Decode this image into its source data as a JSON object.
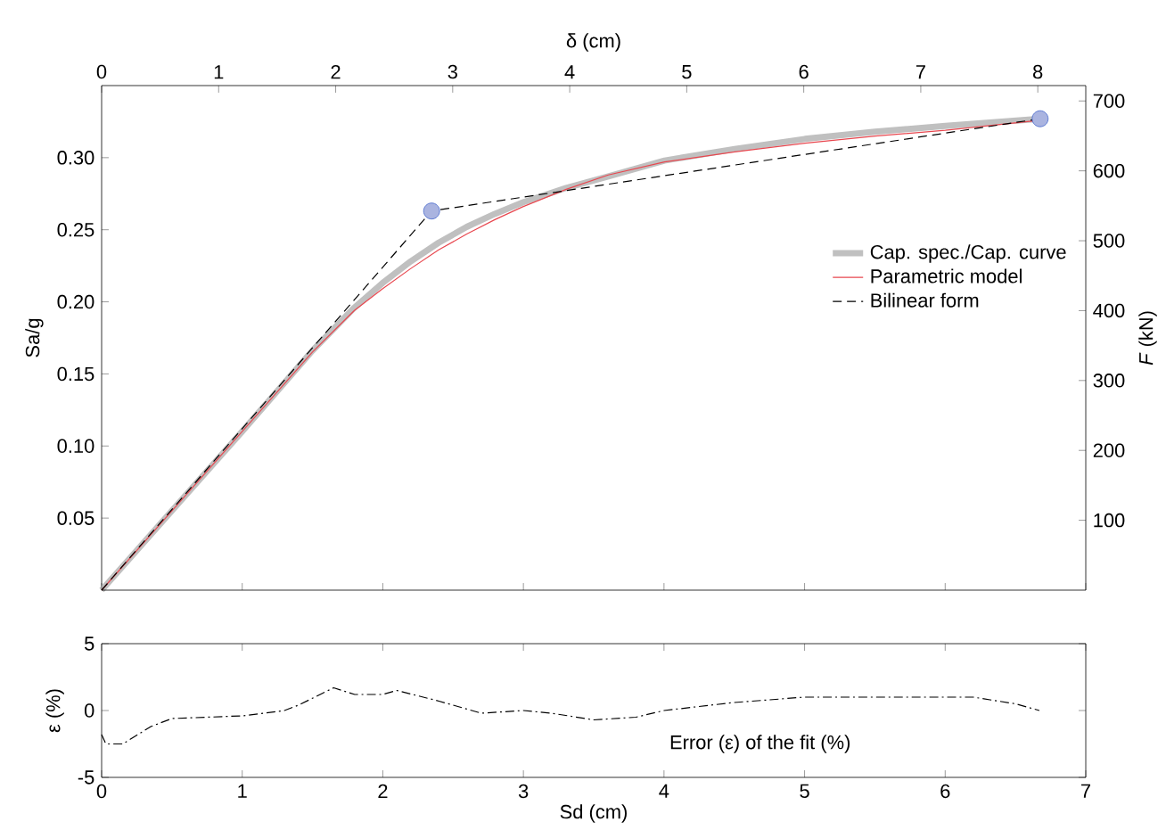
{
  "chart_data": [
    {
      "type": "line",
      "xlabel": "δ (cm)",
      "ylabel": "Sa/g",
      "y2label": "*F* (kN)",
      "xlim": [
        0,
        8.41
      ],
      "xticks": [
        0,
        1,
        2,
        3,
        4,
        5,
        6,
        7,
        8
      ],
      "ylim": [
        0,
        0.35
      ],
      "yticks": [
        0.05,
        {
          "value": 0.1,
          "label": "0.10"
        },
        0.15,
        {
          "value": 0.2,
          "label": "0.20"
        },
        0.25,
        {
          "value": 0.3,
          "label": "0.30"
        }
      ],
      "y2lim": [
        0,
        722
      ],
      "y2ticks": [
        100,
        200,
        300,
        400,
        500,
        600,
        700
      ],
      "legend": "right",
      "series": [
        {
          "name": "Cap. spec./Cap. curve",
          "color": "#c0c0c0",
          "line_style": "solid",
          "x": [
            0,
            0.6,
            1.2,
            1.8,
            2.16,
            2.4,
            2.64,
            2.88,
            3.12,
            3.36,
            3.6,
            3.97,
            4.33,
            4.81,
            5.41,
            6.01,
            6.61,
            7.21,
            8.02
          ],
          "values": [
            0,
            0.055,
            0.11,
            0.166,
            0.196,
            0.213,
            0.228,
            0.241,
            0.252,
            0.261,
            0.269,
            0.279,
            0.287,
            0.298,
            0.306,
            0.313,
            0.318,
            0.322,
            0.327
          ]
        },
        {
          "name": "Parametric model",
          "color": "#e8474f",
          "line_style": "solid",
          "x": [
            0,
            0.6,
            1.2,
            1.8,
            2.16,
            2.4,
            2.64,
            2.88,
            3.12,
            3.36,
            3.6,
            3.97,
            4.33,
            4.81,
            5.41,
            6.01,
            6.61,
            7.21,
            8.02
          ],
          "values": [
            0,
            0.055,
            0.11,
            0.165,
            0.194,
            0.209,
            0.223,
            0.236,
            0.247,
            0.257,
            0.266,
            0.278,
            0.288,
            0.297,
            0.304,
            0.31,
            0.315,
            0.319,
            0.326
          ]
        },
        {
          "name": "Bilinear form",
          "color": "#000000",
          "line_style": "dashed",
          "x": [
            0,
            2.82,
            8.02
          ],
          "values": [
            0,
            0.263,
            0.327
          ]
        },
        {
          "type": "scatter",
          "marker": "circle",
          "color": "#aab4e0",
          "x": [
            2.82,
            8.02
          ],
          "values": [
            0.263,
            0.327
          ]
        }
      ]
    },
    {
      "type": "line",
      "xlabel": "Sd (cm)",
      "ylabel": "ε (%)",
      "xlim": [
        0,
        7
      ],
      "xticks": [
        0,
        1,
        2,
        3,
        4,
        5,
        6,
        7
      ],
      "ylim": [
        -5,
        5
      ],
      "yticks": [
        -5,
        0,
        5
      ],
      "annotations": [
        "Error (ε) of the fit (%)"
      ],
      "series": [
        {
          "color": "#000000",
          "line_style": "dashdot",
          "x": [
            0,
            0.03,
            0.15,
            0.35,
            0.5,
            1.0,
            1.3,
            1.4,
            1.65,
            1.8,
            2.0,
            2.1,
            2.4,
            2.7,
            3.0,
            3.2,
            3.5,
            3.8,
            4.0,
            4.5,
            5.0,
            6.2,
            6.5,
            6.67
          ],
          "values": [
            -1.8,
            -2.5,
            -2.5,
            -1.2,
            -0.6,
            -0.4,
            0,
            0.4,
            1.7,
            1.2,
            1.2,
            1.5,
            0.7,
            -0.2,
            0,
            -0.2,
            -0.7,
            -0.5,
            0,
            0.6,
            1.0,
            1.0,
            0.5,
            0
          ]
        }
      ]
    }
  ]
}
